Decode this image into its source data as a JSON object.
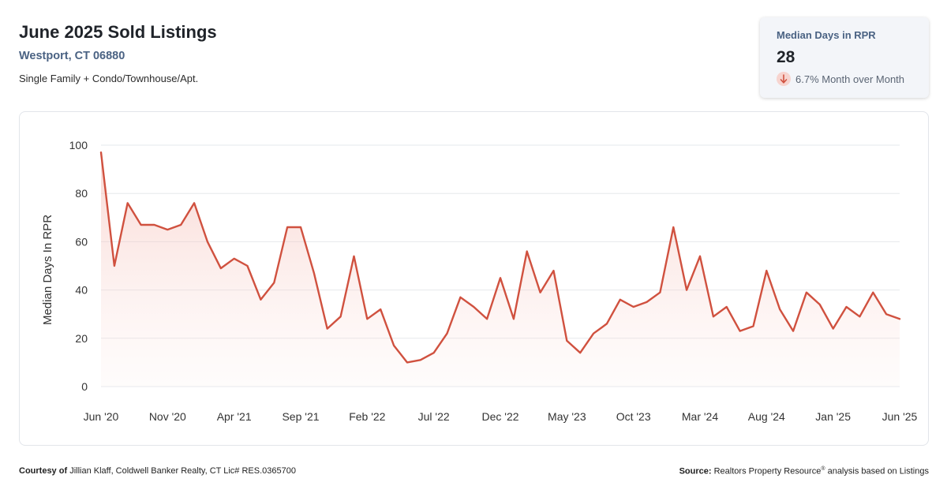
{
  "header": {
    "title": "June 2025 Sold Listings",
    "location": "Westport, CT 06880",
    "subtitle": "Single Family + Condo/Townhouse/Apt."
  },
  "kpi": {
    "label": "Median Days in RPR",
    "value": "28",
    "change": "6.7% Month over Month",
    "direction_icon": "arrow-down-icon"
  },
  "colors": {
    "line": "#d0513f",
    "area": "#fbe4e1",
    "grid": "#e6e8ec",
    "label_blue": "#4a6283"
  },
  "chart_data": {
    "type": "area",
    "ylabel": "Median Days In RPR",
    "ylim": [
      0,
      100
    ],
    "yticks": [
      0,
      20,
      40,
      60,
      80,
      100
    ],
    "grid": true,
    "x_tick_labels": [
      "Jun '20",
      "Nov '20",
      "Apr '21",
      "Sep '21",
      "Feb '22",
      "Jul '22",
      "Dec '22",
      "May '23",
      "Oct '23",
      "Mar '24",
      "Aug '24",
      "Jan '25",
      "Jun '25"
    ],
    "x_tick_every": 5,
    "x_start": "2020-06",
    "x_end": "2025-06",
    "series": [
      {
        "values": [
          97,
          50,
          76,
          67,
          67,
          65,
          67,
          76,
          60,
          49,
          53,
          50,
          36,
          43,
          66,
          66,
          47,
          24,
          29,
          54,
          28,
          32,
          17,
          10,
          11,
          14,
          22,
          37,
          33,
          28,
          45,
          28,
          56,
          39,
          48,
          19,
          14,
          22,
          26,
          36,
          33,
          35,
          39,
          66,
          40,
          54,
          29,
          33,
          23,
          25,
          48,
          32,
          23,
          39,
          34,
          24,
          33,
          29,
          39,
          30,
          28
        ]
      }
    ]
  },
  "footer": {
    "courtesy_label": "Courtesy of",
    "courtesy_text": "Jillian Klaff, Coldwell Banker Realty, CT Lic# RES.0365700",
    "source_label": "Source:",
    "source_text_before": "Realtors Property Resource",
    "source_sup": "®",
    "source_text_after": "analysis based on Listings"
  }
}
